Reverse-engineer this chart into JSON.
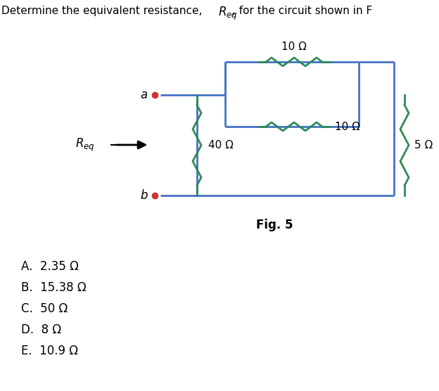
{
  "title": "Determine the equivalent resistance, $\\boldsymbol{R_{eq}}$, for the circuit shown in F",
  "fig_label": "Fig. 5",
  "wire_color": "#4472C4",
  "resistor_color_40": "#2E8B57",
  "resistor_color_10top": "#2E8B57",
  "resistor_color_10mid": "#2E8B57",
  "resistor_color_5": "#2E8B57",
  "bg_color": "#ffffff",
  "answers": [
    "A.  2.35 Ω",
    "B.  15.38 Ω",
    "C.  50 Ω",
    "D.  8 Ω",
    "E.  10.9 Ω"
  ],
  "labels": {
    "a": "a",
    "b": "b",
    "req": "$R_{eq}$",
    "r40": "40 Ω",
    "r10top": "10 Ω",
    "r10mid": "10 Ω",
    "r5": "5 Ω"
  }
}
